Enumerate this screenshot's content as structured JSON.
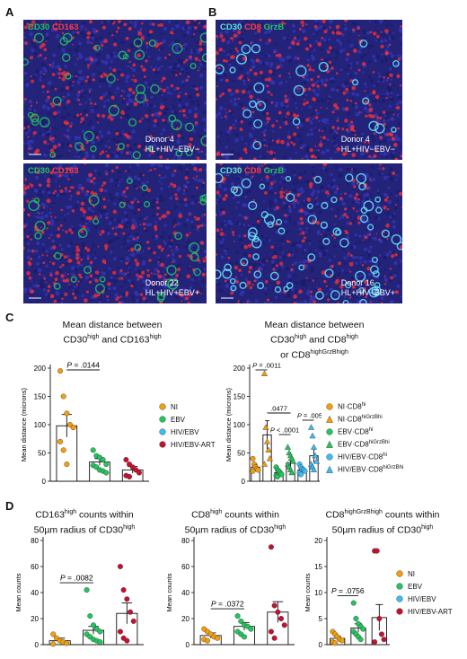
{
  "panels": {
    "A": "A",
    "B": "B",
    "C": "C",
    "D": "D"
  },
  "colors": {
    "NI": "#f59e0b",
    "EBV": "#22c55e",
    "HIV_EBV": "#38bdf8",
    "HIV_EBV_ART": "#c8102e",
    "tissue_bg": "#2a2a8a",
    "cd30_green": "#22c55e",
    "cd163_red": "#ff3030",
    "cd30_cyan": "#67e8f9"
  },
  "micrographs": [
    {
      "stain": [
        "CD30",
        "CD163"
      ],
      "donor": "Donor 4",
      "case": "HL+HIV−EBV−"
    },
    {
      "stain": [
        "CD30",
        "CD163"
      ],
      "donor": "Donor 22",
      "case": "HL+HIV+EBV+"
    },
    {
      "stain": [
        "CD30",
        "CD8",
        "GrzB"
      ],
      "donor": "Donor 4",
      "case": "HL+HIV−EBV−"
    },
    {
      "stain": [
        "CD30",
        "CD8",
        "GrzB"
      ],
      "donor": "Donor 16",
      "case": "HL+HIV−EBV+"
    }
  ],
  "chart_data": [
    {
      "id": "C-left",
      "type": "bar",
      "title_lines": [
        "Mean distance between",
        "CD30^high and CD163^high"
      ],
      "ylabel": "Mean distance (microns)",
      "ylim": [
        0,
        200
      ],
      "yticks": [
        0,
        50,
        100,
        150,
        200
      ],
      "categories": [
        "NI",
        "EBV",
        "HIV/EBV-ART"
      ],
      "values": [
        98,
        34,
        20
      ],
      "errors": [
        20,
        6,
        6
      ],
      "points": [
        [
          195,
          150,
          120,
          100,
          95,
          70,
          55,
          30
        ],
        [
          55,
          45,
          42,
          38,
          30,
          28,
          25,
          20,
          18,
          15
        ],
        [
          38,
          30,
          25,
          20,
          15,
          10,
          8
        ]
      ],
      "annotations": [
        {
          "label": "P = .0144",
          "from": 0,
          "to": 1
        }
      ],
      "legend": [
        "NI",
        "EBV",
        "HIV/EBV",
        "HIV/EBV-ART"
      ]
    },
    {
      "id": "C-right",
      "type": "bar",
      "title_lines": [
        "Mean distance between",
        "CD30^high and CD8^high",
        "or CD8^highGrzB^high"
      ],
      "ylabel": "Mean distance (microns)",
      "ylim": [
        0,
        200
      ],
      "yticks": [
        0,
        50,
        100,
        150,
        200
      ],
      "categories": [
        "NI·CD8hi",
        "NI·CD8hiGrzBhi",
        "EBV·CD8hi",
        "EBV·CD8hiGrzBhi",
        "HIV/EBV·CD8hi",
        "HIV/EBV·CD8hiGrzBhi"
      ],
      "values": [
        25,
        82,
        15,
        32,
        20,
        45
      ],
      "errors": [
        5,
        25,
        3,
        6,
        4,
        12
      ],
      "points": [
        [
          40,
          30,
          25,
          22,
          20,
          18
        ],
        [
          190,
          95,
          70,
          55,
          40,
          30
        ],
        [
          25,
          20,
          18,
          15,
          12,
          10,
          8
        ],
        [
          60,
          50,
          45,
          40,
          35,
          30,
          25,
          20,
          15
        ],
        [
          30,
          25,
          22,
          20,
          18,
          15,
          12
        ],
        [
          95,
          80,
          60,
          45,
          35,
          30,
          25,
          20
        ]
      ],
      "annotations": [
        {
          "label": "P = .0011",
          "from": 0,
          "to": 1
        },
        {
          "label": ".0477",
          "from": 1,
          "to": 3
        },
        {
          "label": "P < .0001",
          "from": 2,
          "to": 3
        },
        {
          "label": "P = .0056",
          "from": 4,
          "to": 5
        }
      ],
      "legend": [
        "NI·CD8^hi",
        "NI·CD8^hiGrzB^hi",
        "EBV·CD8^hi",
        "EBV·CD8^hiGrzB^hi",
        "HIV/EBV·CD8^hi",
        "HIV/EBV·CD8^hiGrzB^hi"
      ]
    },
    {
      "id": "D-1",
      "type": "bar",
      "title_lines": [
        "CD163^high counts within",
        "50µm radius of CD30^high"
      ],
      "ylabel": "Mean counts",
      "ylim": [
        0,
        80
      ],
      "yticks": [
        0,
        20,
        40,
        60,
        80
      ],
      "categories": [
        "NI",
        "EBV",
        "HIV/EBV-ART"
      ],
      "values": [
        3,
        11,
        24
      ],
      "errors": [
        2,
        3,
        8
      ],
      "points": [
        [
          8,
          5,
          3,
          2,
          1,
          0.5
        ],
        [
          42,
          22,
          15,
          12,
          10,
          8,
          6,
          4,
          3,
          2
        ],
        [
          60,
          42,
          35,
          25,
          18,
          10,
          5,
          3
        ]
      ],
      "annotations": [
        {
          "label": "P = .0082",
          "from": 0,
          "to": 1
        }
      ]
    },
    {
      "id": "D-2",
      "type": "bar",
      "title_lines": [
        "CD8^high counts within",
        "50µm radius of CD30^high"
      ],
      "ylabel": "Mean counts",
      "ylim": [
        0,
        80
      ],
      "yticks": [
        0,
        20,
        40,
        60,
        80
      ],
      "categories": [
        "NI",
        "EBV",
        "HIV/EBV-ART"
      ],
      "values": [
        7,
        14,
        25
      ],
      "errors": [
        2,
        3,
        8
      ],
      "points": [
        [
          12,
          10,
          8,
          6,
          5,
          4,
          3
        ],
        [
          22,
          18,
          15,
          14,
          12,
          10,
          8,
          6
        ],
        [
          75,
          30,
          25,
          20,
          15,
          10,
          5
        ]
      ],
      "annotations": [
        {
          "label": "P = .0372",
          "from": 0,
          "to": 1
        }
      ]
    },
    {
      "id": "D-3",
      "type": "bar",
      "title_lines": [
        "CD8^highGrzB^high counts within",
        "50µm radius of CD30^high"
      ],
      "ylabel": "Mean counts",
      "ylim": [
        0,
        20
      ],
      "yticks": [
        0,
        5,
        10,
        15,
        20
      ],
      "categories": [
        "NI",
        "EBV",
        "HIV/EBV-ART"
      ],
      "values": [
        1.2,
        3.2,
        5.2
      ],
      "errors": [
        0.4,
        0.8,
        2.5
      ],
      "points": [
        [
          2.5,
          2,
          1.5,
          1,
          0.8,
          0.5,
          0.3
        ],
        [
          8,
          5,
          4,
          3.5,
          3,
          2.5,
          2,
          1.5,
          1
        ],
        [
          18,
          18,
          5,
          2,
          1,
          0.5
        ]
      ],
      "annotations": [
        {
          "label": "P = .0756",
          "from": 0,
          "to": 1
        }
      ],
      "legend": [
        "NI",
        "EBV",
        "HIV/EBV",
        "HIV/EBV-ART"
      ]
    }
  ]
}
